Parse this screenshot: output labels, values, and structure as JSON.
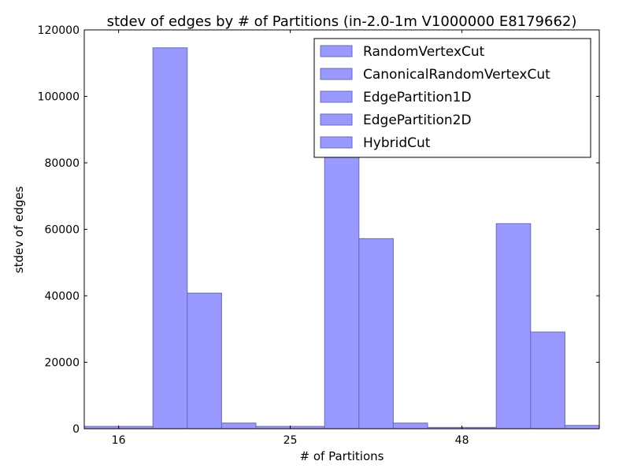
{
  "chart_data": {
    "type": "bar",
    "title": "stdev of edges by # of Partitions (in-2.0-1m V1000000 E8179662)",
    "xlabel": "# of Partitions",
    "ylabel": "stdev of edges",
    "categories": [
      "16",
      "25",
      "48"
    ],
    "series": [
      {
        "name": "RandomVertexCut",
        "values": [
          700,
          700,
          400
        ]
      },
      {
        "name": "CanonicalRandomVertexCut",
        "values": [
          700,
          700,
          400
        ]
      },
      {
        "name": "EdgePartition1D",
        "values": [
          114600,
          83000,
          61700
        ]
      },
      {
        "name": "EdgePartition2D",
        "values": [
          40800,
          57200,
          29100
        ]
      },
      {
        "name": "HybridCut",
        "values": [
          1700,
          1700,
          1000
        ]
      }
    ],
    "ylim": [
      0,
      120000
    ],
    "yticks": [
      "0",
      "20000",
      "40000",
      "60000",
      "80000",
      "100000",
      "120000"
    ],
    "grid": false,
    "legend_position": "top-right",
    "colors": {
      "bar_fill": "#9999ff",
      "bar_edge": "#6a6ab0",
      "axis": "#000000"
    }
  }
}
